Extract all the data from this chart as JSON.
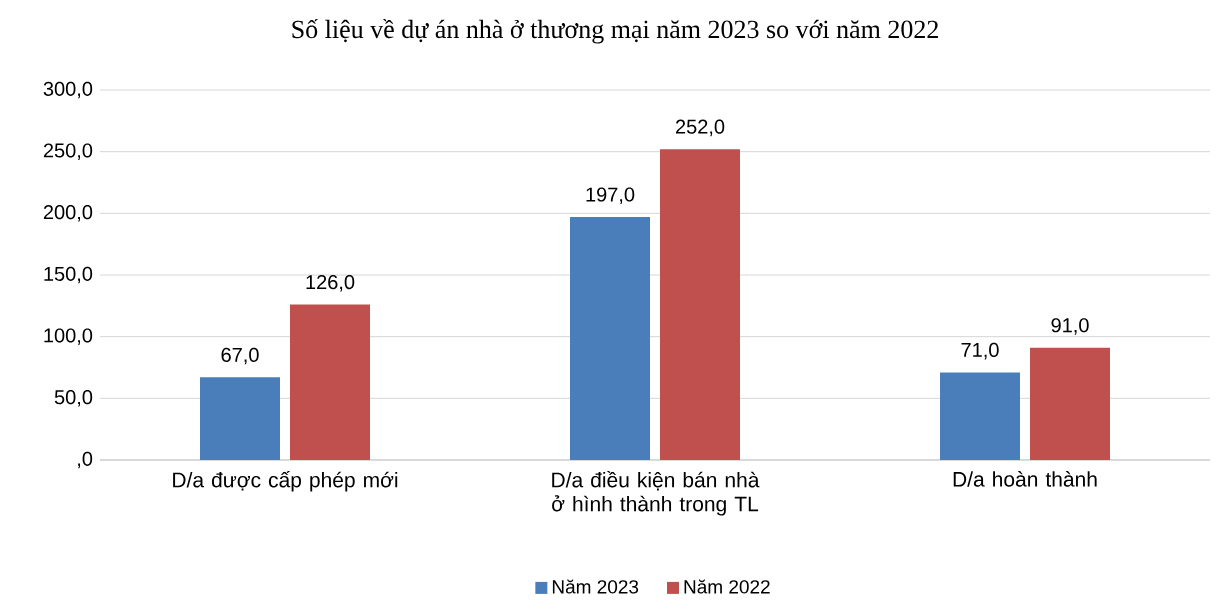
{
  "chart_data": {
    "type": "bar",
    "title": "Số liệu về dự án nhà ở thương mại năm 2023 so với năm 2022",
    "categories": [
      "D/a được cấp phép mới",
      "D/a điều kiện bán nhà ở hình thành trong TL",
      "D/a hoàn thành"
    ],
    "series": [
      {
        "name": "Năm 2023",
        "color": "#4a7ebb",
        "values": [
          67,
          197,
          71
        ],
        "value_labels": [
          "67,0",
          "197,0",
          "71,0"
        ]
      },
      {
        "name": "Năm 2022",
        "color": "#c0504d",
        "values": [
          126,
          252,
          91
        ],
        "value_labels": [
          "126,0",
          "252,0",
          "91,0"
        ]
      }
    ],
    "ylim": [
      0,
      300
    ],
    "yticks": [
      {
        "value": 0,
        "label": ",0"
      },
      {
        "value": 50,
        "label": "50,0"
      },
      {
        "value": 100,
        "label": "100,0"
      },
      {
        "value": 150,
        "label": "150,0"
      },
      {
        "value": 200,
        "label": "200,0"
      },
      {
        "value": 250,
        "label": "250,0"
      },
      {
        "value": 300,
        "label": "300,0"
      }
    ],
    "grid": "y",
    "legend": "bottom"
  }
}
